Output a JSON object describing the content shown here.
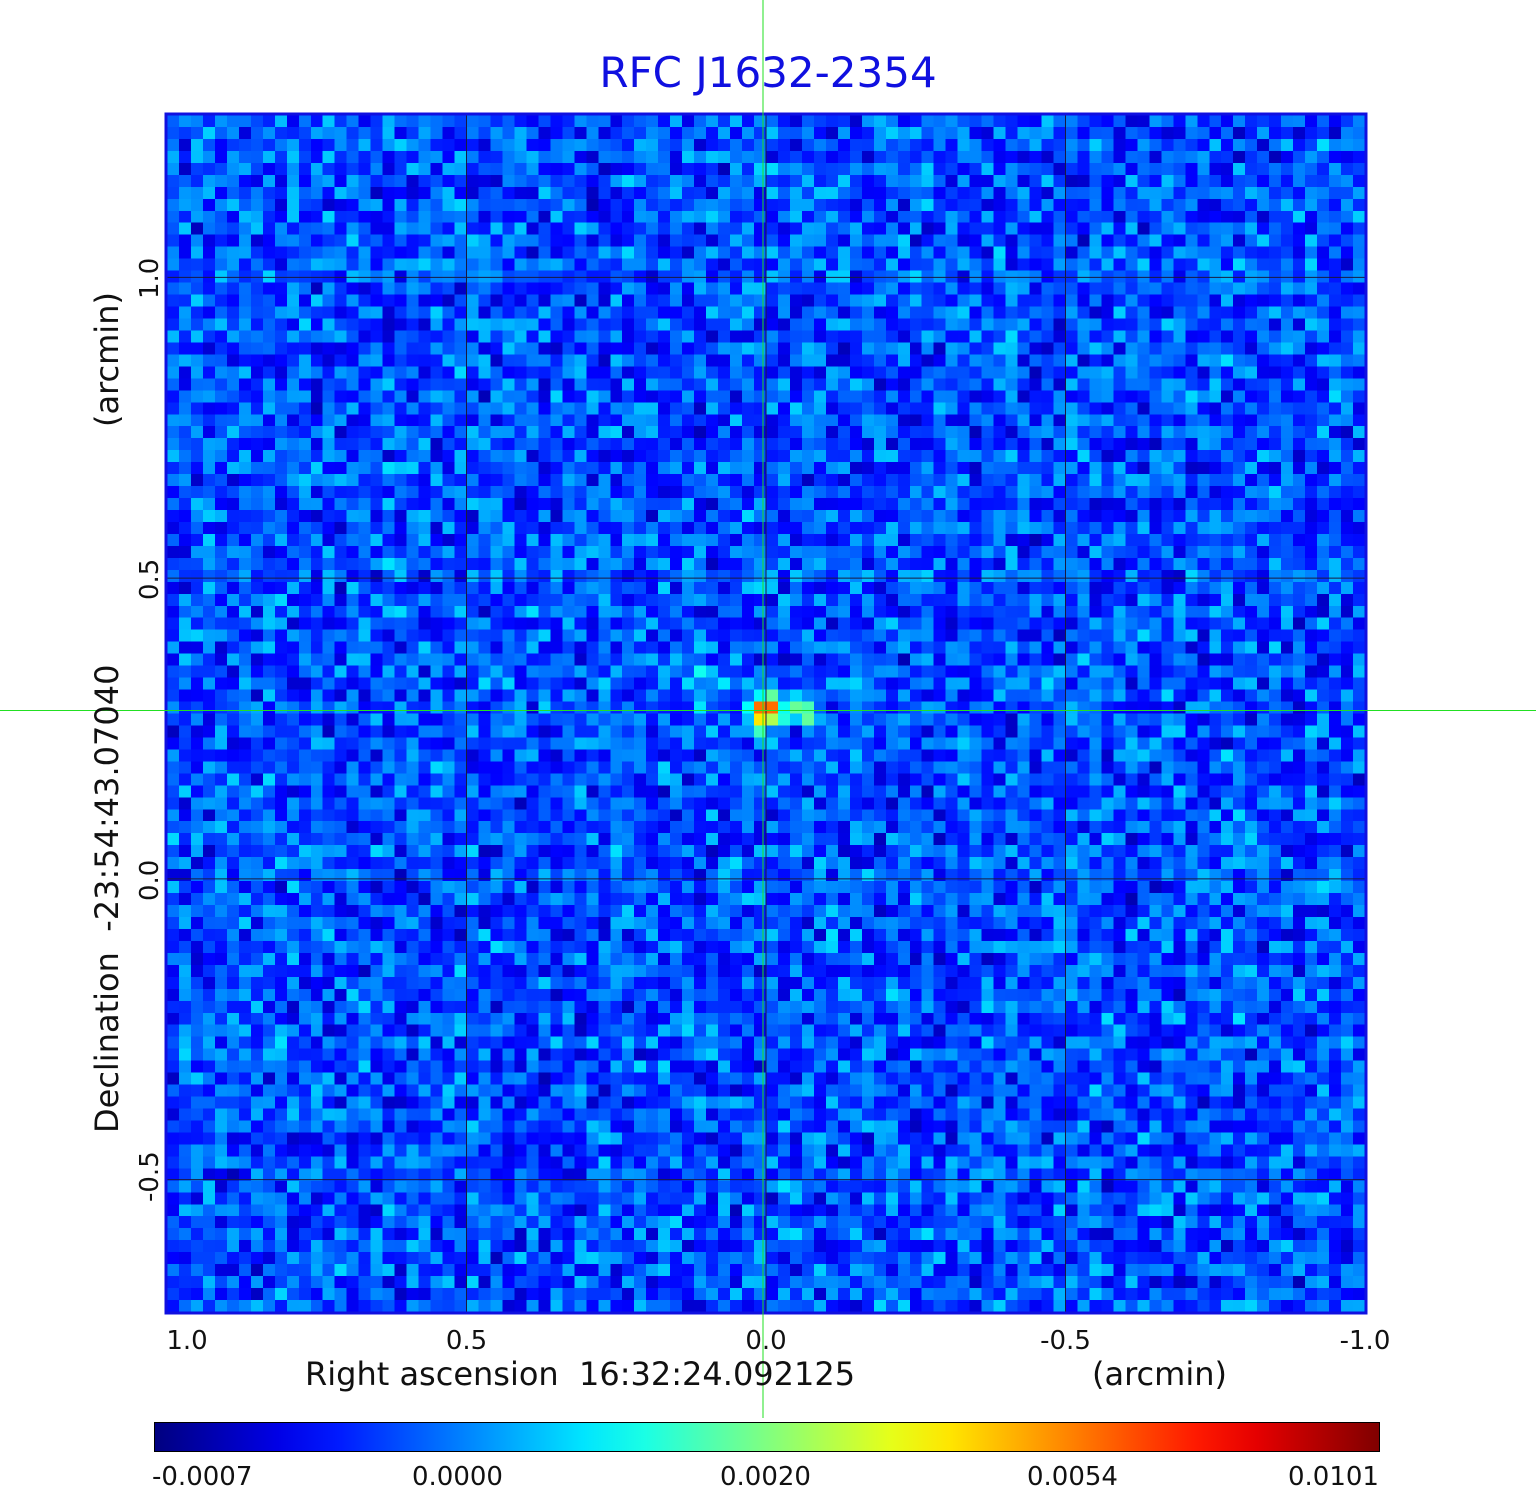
{
  "chart_data": {
    "type": "heatmap",
    "title": "RFC J1632-2354",
    "xlabel": "Right ascension  16:32:24.092125",
    "x_unit": "(arcmin)",
    "ylabel": "Declination  -23:54:43.07040",
    "y_unit": "(arcmin)",
    "x_ticks": [
      "1.0",
      "0.5",
      "0.0",
      "-0.5",
      "-1.0"
    ],
    "x_tick_values": [
      1.0,
      0.5,
      0.0,
      -0.5,
      -1.0
    ],
    "y_ticks": [
      "1.0",
      "0.5",
      "0.0",
      "-0.5"
    ],
    "y_tick_values": [
      1.0,
      0.5,
      0.0,
      -0.5
    ],
    "xlim": [
      1.0,
      -1.0
    ],
    "ylim": [
      -0.72,
      1.27
    ],
    "grid": true,
    "crosshair": {
      "x": 0.0,
      "y": 0.28
    },
    "source": {
      "x": 0.0,
      "y": 0.28,
      "peak": 0.0101
    },
    "colorbar": {
      "colormap": "jet",
      "ticks": [
        "-0.0007",
        "0.0000",
        "0.0020",
        "0.0054",
        "0.0101"
      ],
      "tick_values": [
        -0.0007,
        0.0,
        0.002,
        0.0054,
        0.0101
      ]
    }
  }
}
